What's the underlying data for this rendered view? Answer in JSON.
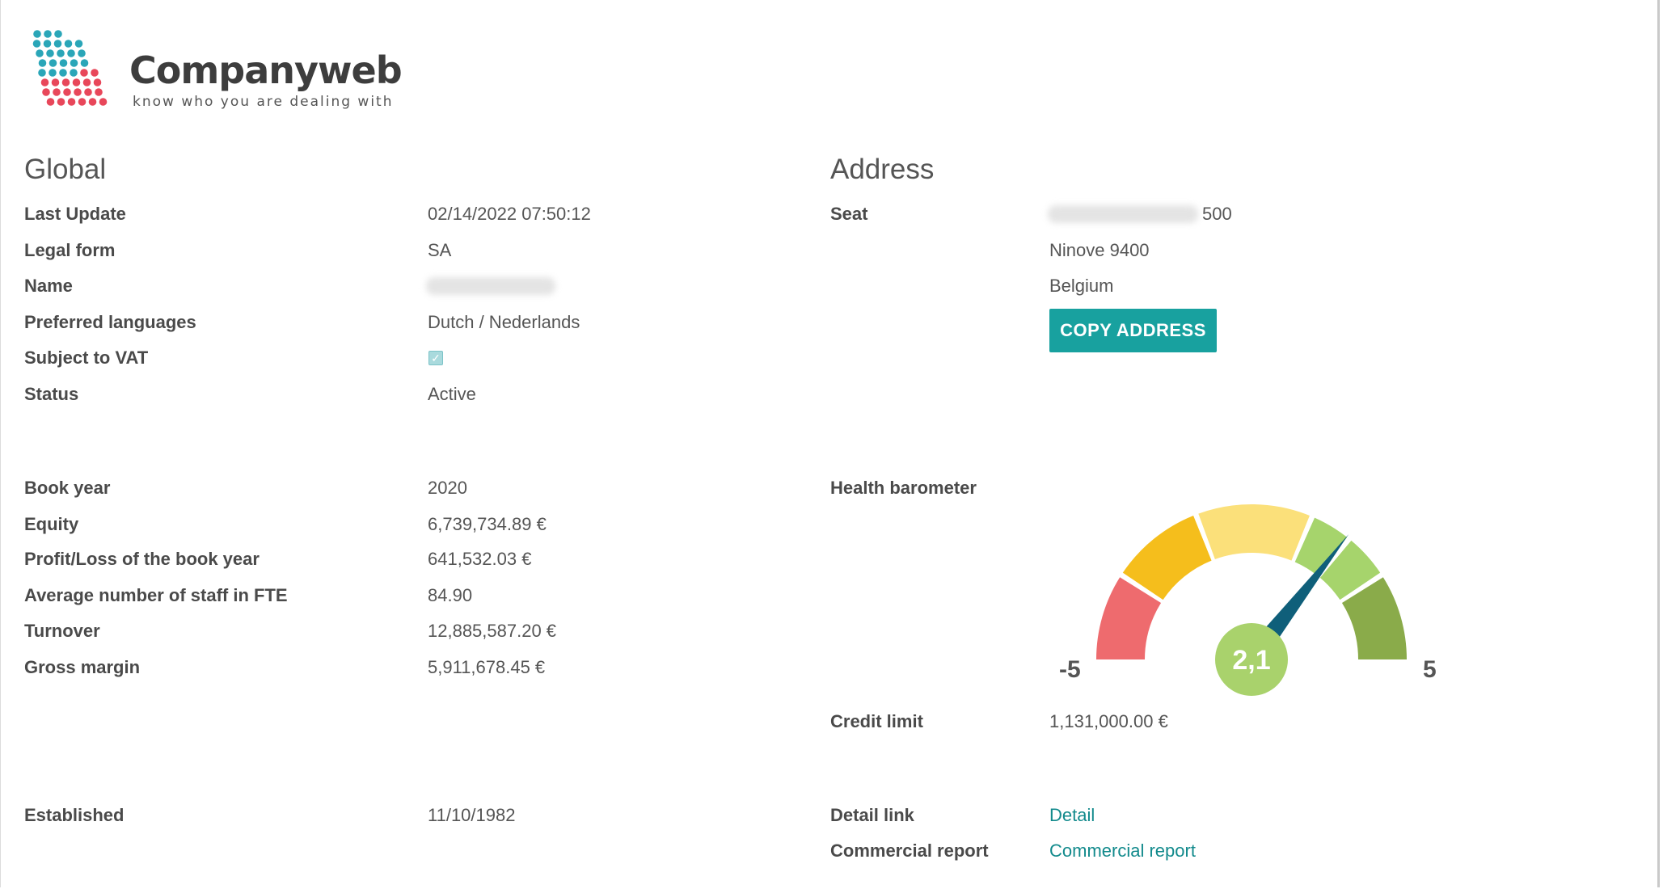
{
  "brand": {
    "name": "Companyweb",
    "tagline": "know who you are dealing with"
  },
  "global": {
    "title": "Global",
    "rows": [
      {
        "label": "Last Update",
        "value": "02/14/2022 07:50:12"
      },
      {
        "label": "Legal form",
        "value": "SA"
      },
      {
        "label": "Name",
        "value": ""
      },
      {
        "label": "Preferred languages",
        "value": "Dutch / Nederlands"
      },
      {
        "label": "Subject to VAT",
        "value": ""
      },
      {
        "label": "Status",
        "value": "Active"
      }
    ],
    "vat_checked": true
  },
  "financials": [
    {
      "label": "Book year",
      "value": "2020"
    },
    {
      "label": "Equity",
      "value": "6,739,734.89 €"
    },
    {
      "label": "Profit/Loss of the book year",
      "value": "641,532.03 €"
    },
    {
      "label": "Average number of staff in FTE",
      "value": "84.90"
    },
    {
      "label": "Turnover",
      "value": "12,885,587.20 €"
    },
    {
      "label": "Gross margin",
      "value": "5,911,678.45 €"
    }
  ],
  "established": {
    "label": "Established",
    "value": "11/10/1982"
  },
  "address": {
    "title": "Address",
    "seat_label": "Seat",
    "street_number": "500",
    "city_line": "Ninove  9400",
    "country": "Belgium",
    "copy_button": "COPY ADDRESS"
  },
  "health": {
    "label": "Health barometer",
    "score": "2,1",
    "score_value": 2.1,
    "min_label": "-5",
    "max_label": "5",
    "min": -5,
    "max": 5,
    "colors": [
      "#ee6b6e",
      "#f5be1c",
      "#fbe07a",
      "#a6d46c",
      "#a6d46c",
      "#8aab4a"
    ],
    "needle_color": "#0f5f7a",
    "center_color": "#a9d26c"
  },
  "credit": {
    "label": "Credit limit",
    "value": "1,131,000.00 €"
  },
  "links": {
    "detail_label": "Detail link",
    "detail_text": "Detail",
    "report_label": "Commercial report",
    "report_text": "Commercial report"
  }
}
